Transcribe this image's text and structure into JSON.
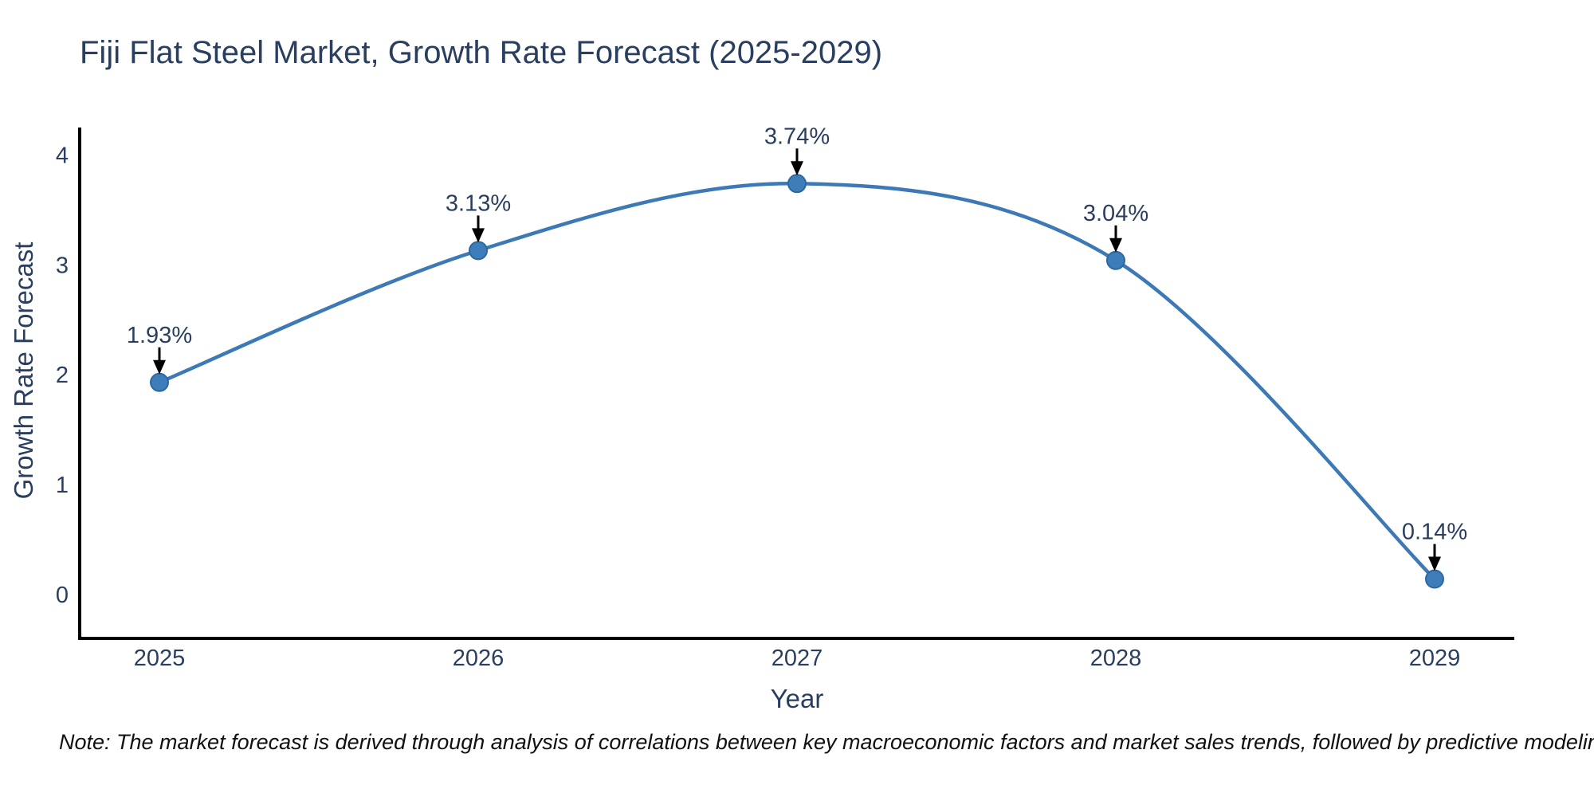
{
  "header": {
    "title": "Fiji Flat Steel Market, Growth Rate Forecast (2025-2029)"
  },
  "chart_data": {
    "type": "line",
    "title": "Fiji Flat Steel Market, Growth Rate Forecast (2025-2029)",
    "xlabel": "Year",
    "ylabel": "Growth Rate Forecast",
    "x": [
      2025,
      2026,
      2027,
      2028,
      2029
    ],
    "y": [
      1.93,
      3.13,
      3.74,
      3.04,
      0.14
    ],
    "point_labels": [
      "1.93%",
      "3.13%",
      "3.74%",
      "3.04%",
      "0.14%"
    ],
    "xtick_labels": [
      "2025",
      "2026",
      "2027",
      "2028",
      "2029"
    ],
    "yticks": [
      0,
      1,
      2,
      3,
      4
    ],
    "ytick_labels": [
      "0",
      "1",
      "2",
      "3",
      "4"
    ],
    "xlim": [
      2024.75,
      2029.25
    ],
    "ylim": [
      -0.4,
      4.25
    ],
    "grid": false,
    "legend": "none",
    "line_shape": "spline",
    "line_color": "#3c79b5",
    "marker_color": "#3d7eba",
    "marker_edge_color": "#2c689f",
    "axis_color": "#000000",
    "tick_color": "#2a3f5f",
    "annotation_text_color": "#2a3f5f",
    "annotation_arrow_color": "#000000"
  },
  "footer": {
    "note": "Note: The market forecast is derived through analysis of correlations between key macroeconomic factors and market sales trends, followed by predictive modeling to project future sales."
  }
}
